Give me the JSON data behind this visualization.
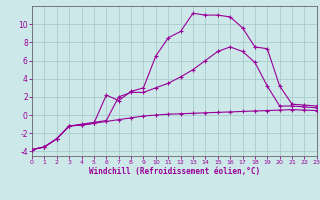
{
  "xlabel": "Windchill (Refroidissement éolien,°C)",
  "bg_color": "#cce8e8",
  "grid_color": "#aacccc",
  "line_color": "#990099",
  "xlim": [
    0,
    23
  ],
  "ylim": [
    -4.5,
    12
  ],
  "xticks": [
    0,
    1,
    2,
    3,
    4,
    5,
    6,
    7,
    8,
    9,
    10,
    11,
    12,
    13,
    14,
    15,
    16,
    17,
    18,
    19,
    20,
    21,
    22,
    23
  ],
  "yticks": [
    -4,
    -2,
    0,
    2,
    4,
    6,
    8,
    10
  ],
  "line1_x": [
    0,
    1,
    2,
    3,
    4,
    5,
    6,
    7,
    8,
    9,
    10,
    11,
    12,
    13,
    14,
    15,
    16,
    17,
    18,
    19,
    20,
    21,
    22,
    23
  ],
  "line1_y": [
    -3.8,
    -3.5,
    -2.6,
    -1.2,
    -1.1,
    -0.9,
    -0.7,
    -0.5,
    -0.3,
    -0.1,
    0.0,
    0.1,
    0.15,
    0.2,
    0.25,
    0.3,
    0.35,
    0.4,
    0.45,
    0.5,
    0.55,
    0.6,
    0.55,
    0.5
  ],
  "line2_x": [
    0,
    1,
    2,
    3,
    4,
    5,
    6,
    7,
    8,
    9,
    10,
    11,
    12,
    13,
    14,
    15,
    16,
    17,
    18,
    19,
    20,
    21,
    22,
    23
  ],
  "line2_y": [
    -3.8,
    -3.5,
    -2.6,
    -1.2,
    -1.1,
    -0.9,
    2.2,
    1.6,
    2.6,
    3.0,
    6.5,
    8.5,
    9.2,
    11.2,
    11.0,
    11.0,
    10.8,
    9.6,
    7.5,
    7.3,
    3.2,
    1.2,
    1.1,
    1.0
  ],
  "line3_x": [
    0,
    1,
    2,
    3,
    4,
    5,
    6,
    7,
    8,
    9,
    10,
    11,
    12,
    13,
    14,
    15,
    16,
    17,
    18,
    19,
    20,
    21,
    22,
    23
  ],
  "line3_y": [
    -3.8,
    -3.5,
    -2.6,
    -1.2,
    -1.0,
    -0.8,
    -0.6,
    2.0,
    2.5,
    2.5,
    3.0,
    3.5,
    4.2,
    5.0,
    6.0,
    7.0,
    7.5,
    7.0,
    5.8,
    3.2,
    1.0,
    1.0,
    0.9,
    0.8
  ]
}
